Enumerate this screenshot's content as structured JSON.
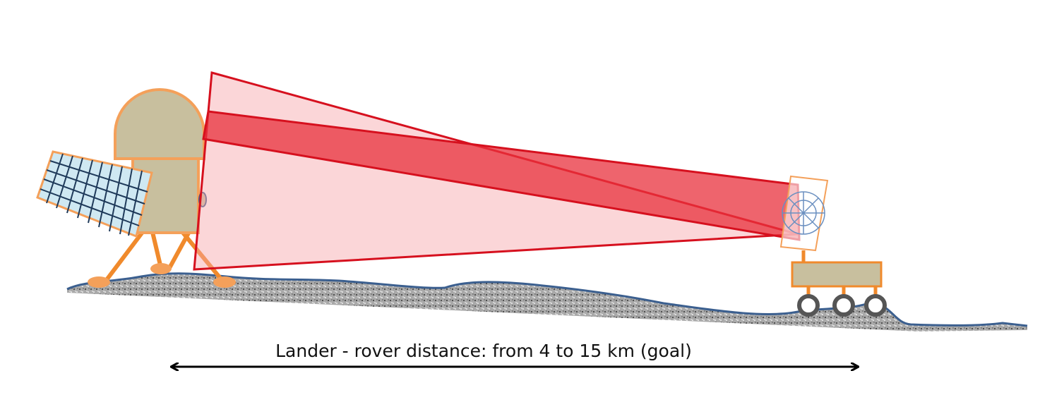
{
  "annotation": {
    "label": "Lander - rover distance: from 4 to 15 km (goal)"
  }
}
